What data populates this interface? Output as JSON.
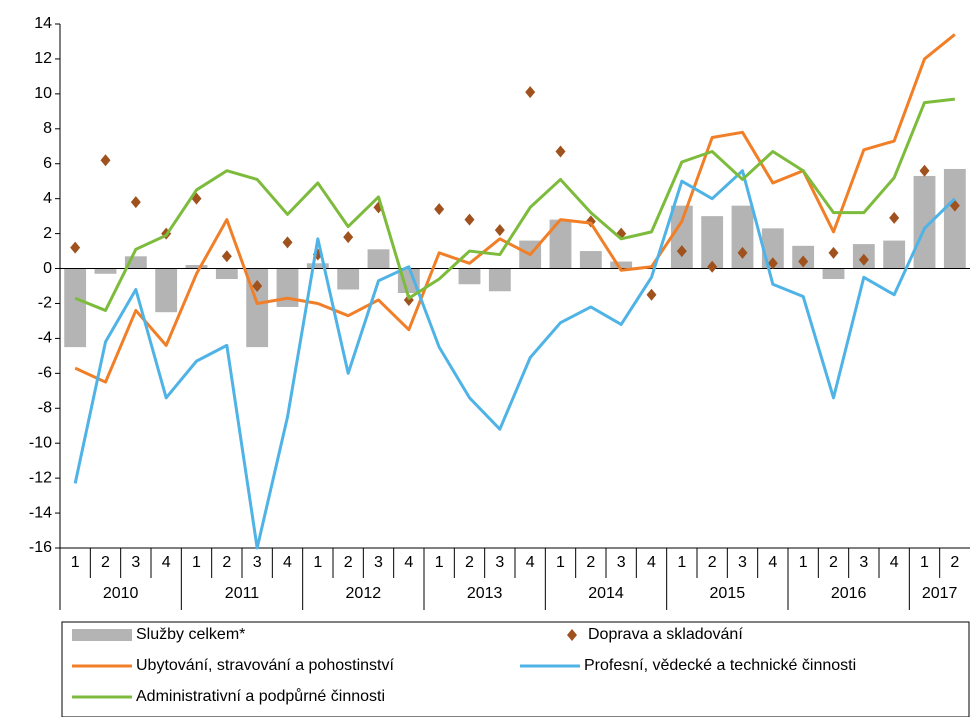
{
  "chart_data": {
    "type": "combo",
    "categories": [
      "1",
      "2",
      "3",
      "4",
      "1",
      "2",
      "3",
      "4",
      "1",
      "2",
      "3",
      "4",
      "1",
      "2",
      "3",
      "4",
      "1",
      "2",
      "3",
      "4",
      "1",
      "2",
      "3",
      "4",
      "1",
      "2",
      "3",
      "4",
      "1",
      "2"
    ],
    "years": [
      "2010",
      "2011",
      "2012",
      "2013",
      "2014",
      "2015",
      "2016",
      "2017"
    ],
    "ylim": [
      -16,
      14
    ],
    "yticks": [
      -16,
      -14,
      -12,
      -10,
      -8,
      -6,
      -4,
      -2,
      0,
      2,
      4,
      6,
      8,
      10,
      12,
      14
    ],
    "series": [
      {
        "name": "Služby celkem*",
        "type": "bar",
        "color": "#b4b4b4",
        "values": [
          -4.5,
          -0.3,
          0.7,
          -2.5,
          0.2,
          -0.6,
          -4.5,
          -2.2,
          0.3,
          -1.2,
          1.1,
          -1.4,
          0,
          -0.9,
          -1.3,
          1.6,
          2.8,
          1.0,
          0.4,
          0,
          3.6,
          3.0,
          3.6,
          2.3,
          1.3,
          -0.6,
          1.4,
          1.6,
          5.3,
          5.7
        ]
      },
      {
        "name": "Doprava a skladování",
        "type": "scatter",
        "color": "#a0521e",
        "values": [
          1.2,
          6.2,
          3.8,
          2.0,
          4.0,
          0.7,
          -1.0,
          1.5,
          0.8,
          1.8,
          3.5,
          -1.8,
          3.4,
          2.8,
          2.2,
          10.1,
          6.7,
          2.7,
          2.0,
          -1.5,
          1.0,
          0.1,
          0.9,
          0.3,
          0.4,
          0.9,
          0.5,
          2.9,
          5.6,
          3.6
        ]
      },
      {
        "name": "Ubytování, stravování a pohostinství",
        "type": "line",
        "color": "#f07f28",
        "values": [
          -5.7,
          -6.5,
          -2.4,
          -4.4,
          -0.3,
          2.8,
          -2.0,
          -1.7,
          -2.0,
          -2.7,
          -1.8,
          -3.5,
          0.9,
          0.3,
          1.7,
          0.8,
          2.8,
          2.6,
          -0.1,
          0.1,
          2.7,
          7.5,
          7.8,
          4.9,
          5.6,
          2.1,
          6.8,
          7.3,
          12.0,
          13.4
        ]
      },
      {
        "name": "Profesní, vědecké a technické činnosti",
        "type": "line",
        "color": "#4fb3e6",
        "values": [
          -12.3,
          -4.2,
          -1.2,
          -7.4,
          -5.3,
          -4.4,
          -16.0,
          -8.5,
          1.7,
          -6.0,
          -0.7,
          0.1,
          -4.5,
          -7.4,
          -9.2,
          -5.1,
          -3.1,
          -2.2,
          -3.2,
          -0.5,
          5.0,
          4.0,
          5.6,
          -0.9,
          -1.6,
          -7.4,
          -0.5,
          -1.5,
          2.3,
          4.0
        ]
      },
      {
        "name": "Administrativní a podpůrné činnosti",
        "type": "line",
        "color": "#7dbb3c",
        "values": [
          -1.7,
          -2.4,
          1.1,
          1.9,
          4.5,
          5.6,
          5.1,
          3.1,
          4.9,
          2.4,
          4.1,
          -1.7,
          -0.6,
          1.0,
          0.8,
          3.5,
          5.1,
          3.2,
          1.7,
          2.1,
          6.1,
          6.7,
          5.1,
          6.7,
          5.6,
          3.2,
          3.2,
          5.2,
          9.5,
          9.7
        ]
      }
    ]
  }
}
